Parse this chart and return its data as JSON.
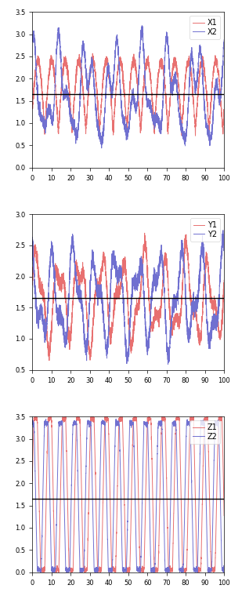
{
  "fig_width": 2.95,
  "fig_height": 7.6,
  "dpi": 100,
  "n_points": 3000,
  "x_end": 100,
  "hline_value": 1.65,
  "hline_color": "#000000",
  "hline_lw": 1.0,
  "subplots": [
    {
      "label1": "X1",
      "label2": "X2",
      "color1": "#e87070",
      "color2": "#7070d0",
      "ylim": [
        0,
        3.5
      ],
      "yticks": [
        0,
        0.5,
        1.0,
        1.5,
        2.0,
        2.5,
        3.0,
        3.5
      ],
      "xlim": [
        0,
        100
      ],
      "xticks": [
        0,
        10,
        20,
        30,
        40,
        50,
        60,
        70,
        80,
        90,
        100
      ],
      "type": "X"
    },
    {
      "label1": "Y1",
      "label2": "Y2",
      "color1": "#e87070",
      "color2": "#7070d0",
      "ylim": [
        0.5,
        3.0
      ],
      "yticks": [
        0.5,
        1.0,
        1.5,
        2.0,
        2.5,
        3.0
      ],
      "xlim": [
        0,
        100
      ],
      "xticks": [
        0,
        10,
        20,
        30,
        40,
        50,
        60,
        70,
        80,
        90,
        100
      ],
      "type": "Y"
    },
    {
      "label1": "Z1",
      "label2": "Z2",
      "color1": "#e87070",
      "color2": "#7070d0",
      "ylim": [
        0,
        3.5
      ],
      "yticks": [
        0,
        0.5,
        1.0,
        1.5,
        2.0,
        2.5,
        3.0,
        3.5
      ],
      "xlim": [
        0,
        100
      ],
      "xticks": [
        0,
        10,
        20,
        30,
        40,
        50,
        60,
        70,
        80,
        90,
        100
      ],
      "type": "Z"
    }
  ],
  "lw": 0.7,
  "legend_fontsize": 7,
  "tick_fontsize": 6
}
